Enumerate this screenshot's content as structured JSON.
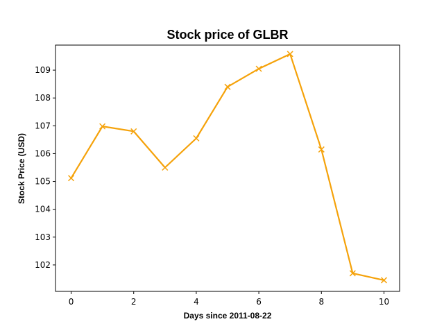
{
  "chart_data": {
    "type": "line",
    "title": "Stock price of GLBR",
    "xlabel": "Days since 2011-08-22",
    "ylabel": "Stock Price (USD)",
    "x": [
      0,
      1,
      2,
      3,
      4,
      5,
      6,
      7,
      8,
      9,
      10
    ],
    "series": [
      {
        "values": [
          105.12,
          106.98,
          106.8,
          105.5,
          106.55,
          108.4,
          109.05,
          109.58,
          106.15,
          101.7,
          101.45
        ],
        "color": "#f5a20a",
        "marker": "x"
      }
    ],
    "xlim": [
      -0.5,
      10.5
    ],
    "ylim": [
      101.05,
      109.9
    ],
    "xticks": [
      0,
      2,
      4,
      6,
      8,
      10
    ],
    "yticks": [
      102,
      103,
      104,
      105,
      106,
      107,
      108,
      109
    ],
    "grid": false,
    "legend": "none"
  }
}
